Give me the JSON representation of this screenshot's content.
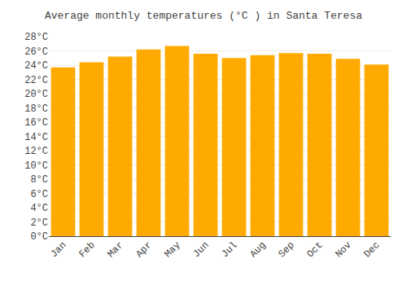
{
  "chart_data": {
    "type": "bar",
    "title": "Average monthly temperatures (°C ) in Santa Teresa",
    "categories": [
      "Jan",
      "Feb",
      "Mar",
      "Apr",
      "May",
      "Jun",
      "Jul",
      "Aug",
      "Sep",
      "Oct",
      "Nov",
      "Dec"
    ],
    "values": [
      23.7,
      24.4,
      25.2,
      26.2,
      26.7,
      25.6,
      25.0,
      25.4,
      25.7,
      25.6,
      24.9,
      24.1
    ],
    "color": "#FFAA00",
    "ylim": [
      0,
      28
    ],
    "yticks": [
      {
        "value": 0,
        "label": "0°C"
      },
      {
        "value": 2,
        "label": "2°C"
      },
      {
        "value": 4,
        "label": "4°C"
      },
      {
        "value": 6,
        "label": "6°C"
      },
      {
        "value": 8,
        "label": "8°C"
      },
      {
        "value": 10,
        "label": "10°C"
      },
      {
        "value": 12,
        "label": "12°C"
      },
      {
        "value": 14,
        "label": "14°C"
      },
      {
        "value": 16,
        "label": "16°C"
      },
      {
        "value": 18,
        "label": "18°C"
      },
      {
        "value": 20,
        "label": "20°C"
      },
      {
        "value": 22,
        "label": "22°C"
      },
      {
        "value": 24,
        "label": "24°C"
      },
      {
        "value": 26,
        "label": "26°C"
      },
      {
        "value": 28,
        "label": "28°C"
      }
    ],
    "grid": true
  }
}
